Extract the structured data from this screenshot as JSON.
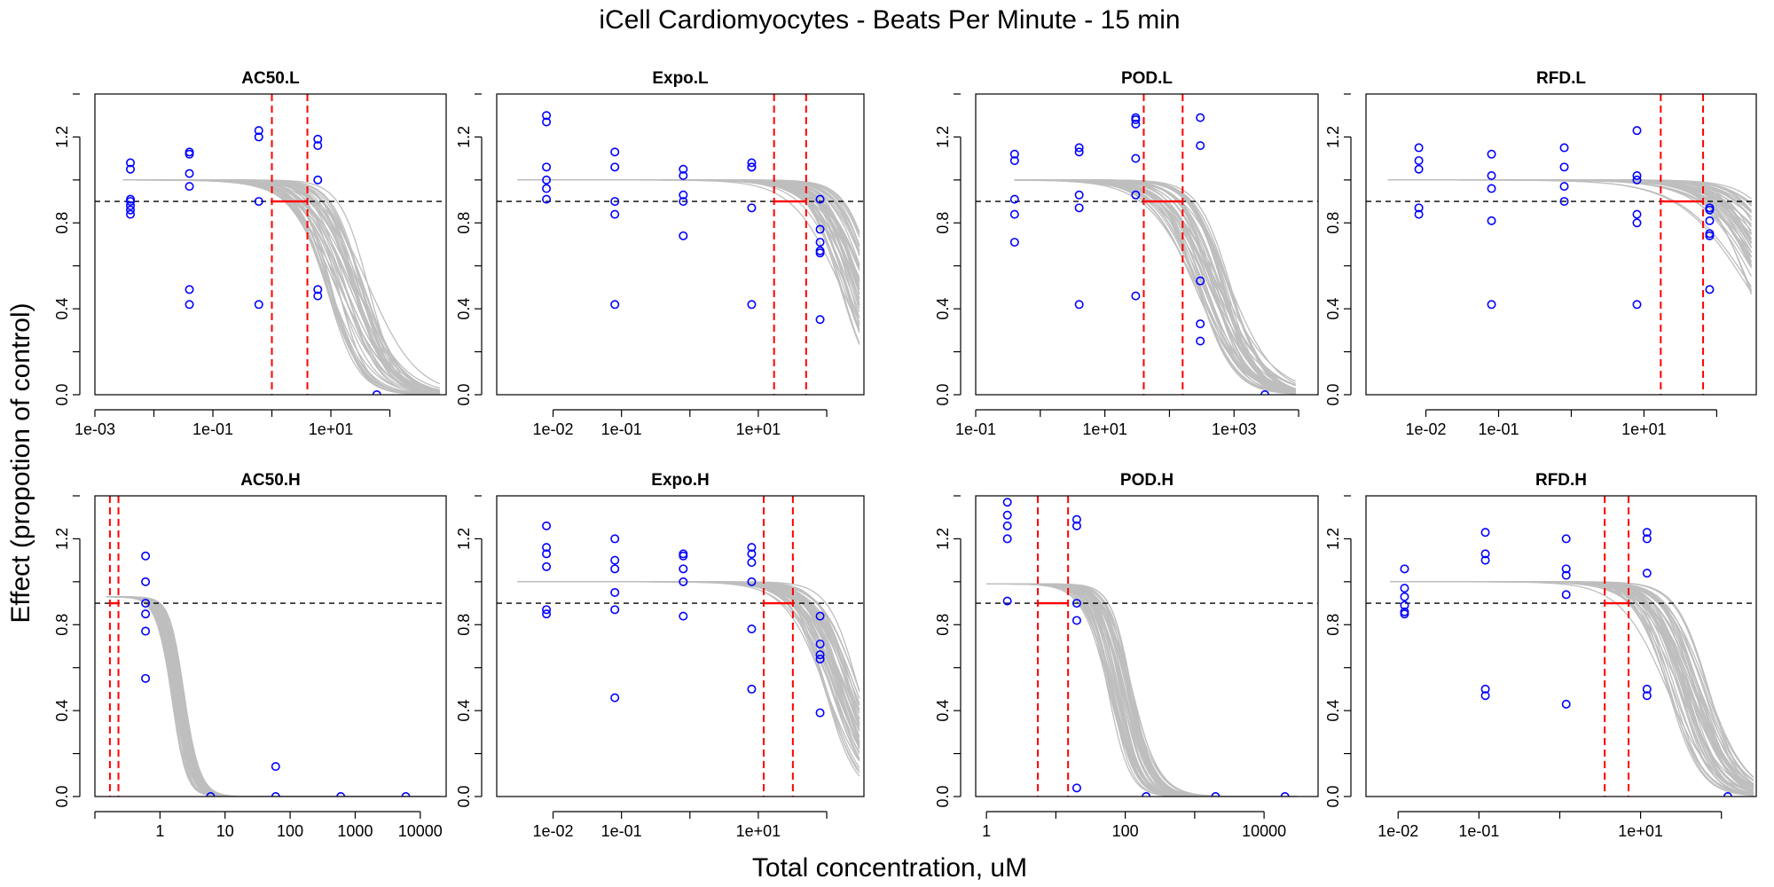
{
  "figure": {
    "title": "iCell Cardiomyocytes -  Beats Per Minute - 15 min",
    "xlabel": "Total concentration, uM",
    "ylabel": "Effect (propotion of control)"
  },
  "colors": {
    "curves": "#bebebe",
    "points": "#0000ff",
    "markers": "#ff0000",
    "threshold": "#000000"
  },
  "chart_data": [
    {
      "type": "scatter",
      "title": "AC50.L",
      "xscale": "log10",
      "xlim": [
        0.001,
        900
      ],
      "ylim": [
        0,
        1.4
      ],
      "threshold": 0.9,
      "xticks": [
        0.001,
        0.1,
        10
      ],
      "xtick_labels": [
        "1e-03",
        "1e-01",
        "1e+01"
      ],
      "yticks": [
        0,
        0.4,
        0.8,
        1.2
      ],
      "ytick_labels": [
        "0.0",
        "0.4",
        "0.8",
        "1.2"
      ],
      "vlines": [
        1.0,
        4.0
      ],
      "curve_band": {
        "top": 1.0,
        "ec50_low": 8,
        "ec50_high": 45,
        "slope_low": 1.0,
        "slope_high": 1.8,
        "x_from": 0.003,
        "x_to": 700
      },
      "points": [
        [
          0.004,
          1.08
        ],
        [
          0.004,
          1.05
        ],
        [
          0.004,
          0.91
        ],
        [
          0.004,
          0.9
        ],
        [
          0.004,
          0.88
        ],
        [
          0.004,
          0.86
        ],
        [
          0.004,
          0.84
        ],
        [
          0.04,
          1.13
        ],
        [
          0.04,
          1.12
        ],
        [
          0.04,
          1.03
        ],
        [
          0.04,
          0.97
        ],
        [
          0.04,
          0.49
        ],
        [
          0.04,
          0.42
        ],
        [
          0.6,
          1.23
        ],
        [
          0.6,
          1.2
        ],
        [
          0.6,
          0.9
        ],
        [
          0.6,
          0.42
        ],
        [
          6,
          1.19
        ],
        [
          6,
          1.16
        ],
        [
          6,
          1.0
        ],
        [
          6,
          0.49
        ],
        [
          6,
          0.46
        ],
        [
          60,
          0.0
        ]
      ]
    },
    {
      "type": "scatter",
      "title": "Expo.L",
      "xscale": "log10",
      "xlim": [
        0.0015,
        350
      ],
      "ylim": [
        0,
        1.4
      ],
      "threshold": 0.9,
      "xticks": [
        0.01,
        0.1,
        10
      ],
      "xtick_labels": [
        "1e-02",
        "1e-01",
        "1e+01"
      ],
      "yticks": [
        0,
        0.4,
        0.8,
        1.2
      ],
      "ytick_labels": [
        "0.0",
        "0.4",
        "0.8",
        "1.2"
      ],
      "vlines": [
        17,
        50
      ],
      "curve_band": {
        "top": 1.0,
        "ec50_low": 150,
        "ec50_high": 600,
        "slope_low": 1.2,
        "slope_high": 2.0,
        "x_from": 0.003,
        "x_to": 300
      },
      "points": [
        [
          0.008,
          1.3
        ],
        [
          0.008,
          1.27
        ],
        [
          0.008,
          1.06
        ],
        [
          0.008,
          1.0
        ],
        [
          0.008,
          0.96
        ],
        [
          0.008,
          0.91
        ],
        [
          0.08,
          1.13
        ],
        [
          0.08,
          1.06
        ],
        [
          0.08,
          0.9
        ],
        [
          0.08,
          0.84
        ],
        [
          0.08,
          0.42
        ],
        [
          0.8,
          1.05
        ],
        [
          0.8,
          1.02
        ],
        [
          0.8,
          0.93
        ],
        [
          0.8,
          0.9
        ],
        [
          0.8,
          0.74
        ],
        [
          8,
          1.08
        ],
        [
          8,
          1.06
        ],
        [
          8,
          1.06
        ],
        [
          8,
          0.87
        ],
        [
          8,
          0.42
        ],
        [
          80,
          0.91
        ],
        [
          80,
          0.77
        ],
        [
          80,
          0.71
        ],
        [
          80,
          0.67
        ],
        [
          80,
          0.66
        ],
        [
          80,
          0.35
        ]
      ]
    },
    {
      "type": "scatter",
      "title": "POD.L",
      "xscale": "log10",
      "xlim": [
        0.1,
        20000
      ],
      "ylim": [
        0,
        1.4
      ],
      "threshold": 0.9,
      "xticks": [
        0.1,
        10,
        1000
      ],
      "xtick_labels": [
        "1e-01",
        "1e+01",
        "1e+03"
      ],
      "yticks": [
        0,
        0.4,
        0.8,
        1.2
      ],
      "ytick_labels": [
        "0.0",
        "0.4",
        "0.8",
        "1.2"
      ],
      "vlines": [
        40,
        160
      ],
      "curve_band": {
        "top": 1.0,
        "ec50_low": 250,
        "ec50_high": 900,
        "slope_low": 1.0,
        "slope_high": 1.8,
        "x_from": 0.4,
        "x_to": 9000
      },
      "points": [
        [
          0.4,
          1.12
        ],
        [
          0.4,
          1.09
        ],
        [
          0.4,
          0.91
        ],
        [
          0.4,
          0.84
        ],
        [
          0.4,
          0.71
        ],
        [
          4,
          1.15
        ],
        [
          4,
          1.13
        ],
        [
          4,
          0.93
        ],
        [
          4,
          0.87
        ],
        [
          4,
          0.42
        ],
        [
          30,
          1.29
        ],
        [
          30,
          1.28
        ],
        [
          30,
          1.26
        ],
        [
          30,
          1.1
        ],
        [
          30,
          0.93
        ],
        [
          30,
          0.46
        ],
        [
          300,
          1.29
        ],
        [
          300,
          1.16
        ],
        [
          300,
          0.53
        ],
        [
          300,
          0.33
        ],
        [
          300,
          0.25
        ],
        [
          3000,
          0.0
        ]
      ]
    },
    {
      "type": "scatter",
      "title": "RFD.L",
      "xscale": "log10",
      "xlim": [
        0.0015,
        350
      ],
      "ylim": [
        0,
        1.4
      ],
      "threshold": 0.9,
      "xticks": [
        0.01,
        0.1,
        10
      ],
      "xtick_labels": [
        "1e-02",
        "1e-01",
        "1e+01"
      ],
      "yticks": [
        0,
        0.4,
        0.8,
        1.2
      ],
      "ytick_labels": [
        "0.0",
        "0.4",
        "0.8",
        "1.2"
      ],
      "vlines": [
        17,
        65
      ],
      "curve_band": {
        "top": 1.0,
        "ec50_low": 250,
        "ec50_high": 1500,
        "slope_low": 0.9,
        "slope_high": 1.6,
        "x_from": 0.003,
        "x_to": 300
      },
      "points": [
        [
          0.008,
          1.15
        ],
        [
          0.008,
          1.09
        ],
        [
          0.008,
          1.05
        ],
        [
          0.008,
          0.87
        ],
        [
          0.008,
          0.84
        ],
        [
          0.08,
          1.12
        ],
        [
          0.08,
          1.02
        ],
        [
          0.08,
          0.96
        ],
        [
          0.08,
          0.81
        ],
        [
          0.08,
          0.42
        ],
        [
          0.8,
          1.15
        ],
        [
          0.8,
          1.06
        ],
        [
          0.8,
          0.97
        ],
        [
          0.8,
          0.9
        ],
        [
          8,
          1.23
        ],
        [
          8,
          1.02
        ],
        [
          8,
          1.0
        ],
        [
          8,
          0.84
        ],
        [
          8,
          0.8
        ],
        [
          8,
          0.42
        ],
        [
          80,
          0.87
        ],
        [
          80,
          0.86
        ],
        [
          80,
          0.81
        ],
        [
          80,
          0.75
        ],
        [
          80,
          0.74
        ],
        [
          80,
          0.49
        ]
      ]
    },
    {
      "type": "scatter",
      "title": "AC50.H",
      "xscale": "log10",
      "xlim": [
        0.1,
        25000
      ],
      "ylim": [
        0,
        1.4
      ],
      "threshold": 0.9,
      "xticks": [
        1,
        10,
        100,
        1000,
        10000
      ],
      "xtick_labels": [
        "1",
        "10",
        "100",
        "1000",
        "10000"
      ],
      "yticks": [
        0,
        0.4,
        0.8,
        1.2
      ],
      "ytick_labels": [
        "0.0",
        "0.4",
        "0.8",
        "1.2"
      ],
      "vlines": [
        0.17,
        0.23
      ],
      "curve_band": {
        "top": 0.93,
        "ec50_low": 1.5,
        "ec50_high": 2.4,
        "slope_low": 3.2,
        "slope_high": 4.0,
        "x_from": 0.15,
        "x_to": 20000
      },
      "points": [
        [
          0.6,
          1.12
        ],
        [
          0.6,
          1.0
        ],
        [
          0.6,
          0.9
        ],
        [
          0.6,
          0.85
        ],
        [
          0.6,
          0.77
        ],
        [
          0.6,
          0.55
        ],
        [
          6,
          0.0
        ],
        [
          60,
          0.14
        ],
        [
          60,
          0.0
        ],
        [
          600,
          0.0
        ],
        [
          6000,
          0.0
        ]
      ]
    },
    {
      "type": "scatter",
      "title": "Expo.H",
      "xscale": "log10",
      "xlim": [
        0.0015,
        350
      ],
      "ylim": [
        0,
        1.4
      ],
      "threshold": 0.9,
      "xticks": [
        0.01,
        0.1,
        10
      ],
      "xtick_labels": [
        "1e-02",
        "1e-01",
        "1e+01"
      ],
      "yticks": [
        0,
        0.4,
        0.8,
        1.2
      ],
      "ytick_labels": [
        "0.0",
        "0.4",
        "0.8",
        "1.2"
      ],
      "vlines": [
        12,
        32
      ],
      "curve_band": {
        "top": 1.0,
        "ec50_low": 90,
        "ec50_high": 300,
        "slope_low": 1.3,
        "slope_high": 2.0,
        "x_from": 0.003,
        "x_to": 300
      },
      "points": [
        [
          0.008,
          1.26
        ],
        [
          0.008,
          1.16
        ],
        [
          0.008,
          1.13
        ],
        [
          0.008,
          1.07
        ],
        [
          0.008,
          0.87
        ],
        [
          0.008,
          0.85
        ],
        [
          0.08,
          1.2
        ],
        [
          0.08,
          1.1
        ],
        [
          0.08,
          1.06
        ],
        [
          0.08,
          0.95
        ],
        [
          0.08,
          0.87
        ],
        [
          0.08,
          0.46
        ],
        [
          0.8,
          1.13
        ],
        [
          0.8,
          1.12
        ],
        [
          0.8,
          1.06
        ],
        [
          0.8,
          1.0
        ],
        [
          0.8,
          0.84
        ],
        [
          8,
          1.16
        ],
        [
          8,
          1.13
        ],
        [
          8,
          1.09
        ],
        [
          8,
          1.0
        ],
        [
          8,
          0.78
        ],
        [
          8,
          0.5
        ],
        [
          80,
          0.84
        ],
        [
          80,
          0.71
        ],
        [
          80,
          0.66
        ],
        [
          80,
          0.64
        ],
        [
          80,
          0.39
        ]
      ]
    },
    {
      "type": "scatter",
      "title": "POD.H",
      "xscale": "log10",
      "xlim": [
        0.7,
        60000
      ],
      "ylim": [
        0,
        1.4
      ],
      "threshold": 0.9,
      "xticks": [
        1,
        100,
        10000
      ],
      "xtick_labels": [
        "1",
        "100",
        "10000"
      ],
      "yticks": [
        0,
        0.4,
        0.8,
        1.2
      ],
      "ytick_labels": [
        "0.0",
        "0.4",
        "0.8",
        "1.2"
      ],
      "vlines": [
        5.5,
        15
      ],
      "curve_band": {
        "top": 0.99,
        "ec50_low": 55,
        "ec50_high": 130,
        "slope_low": 2.0,
        "slope_high": 3.0,
        "x_from": 1,
        "x_to": 30000
      },
      "points": [
        [
          2,
          1.45
        ],
        [
          2,
          1.37
        ],
        [
          2,
          1.31
        ],
        [
          2,
          1.26
        ],
        [
          2,
          1.2
        ],
        [
          2,
          0.91
        ],
        [
          20,
          1.29
        ],
        [
          20,
          1.26
        ],
        [
          20,
          0.9
        ],
        [
          20,
          0.82
        ],
        [
          20,
          0.04
        ],
        [
          200,
          0.0
        ],
        [
          2000,
          0.0
        ],
        [
          20000,
          0.0
        ]
      ]
    },
    {
      "type": "scatter",
      "title": "RFD.H",
      "xscale": "log10",
      "xlim": [
        0.004,
        270
      ],
      "ylim": [
        0,
        1.4
      ],
      "threshold": 0.9,
      "xticks": [
        0.01,
        0.1,
        10
      ],
      "xtick_labels": [
        "1e-02",
        "1e-01",
        "1e+01"
      ],
      "yticks": [
        0,
        0.4,
        0.8,
        1.2
      ],
      "ytick_labels": [
        "0.0",
        "0.4",
        "0.8",
        "1.2"
      ],
      "vlines": [
        3.6,
        7.1
      ],
      "curve_band": {
        "top": 1.0,
        "ec50_low": 20,
        "ec50_high": 70,
        "slope_low": 1.5,
        "slope_high": 2.3,
        "x_from": 0.008,
        "x_to": 250
      },
      "points": [
        [
          0.012,
          1.06
        ],
        [
          0.012,
          0.97
        ],
        [
          0.012,
          0.93
        ],
        [
          0.012,
          0.89
        ],
        [
          0.012,
          0.86
        ],
        [
          0.012,
          0.85
        ],
        [
          0.12,
          1.23
        ],
        [
          0.12,
          1.13
        ],
        [
          0.12,
          1.1
        ],
        [
          0.12,
          0.5
        ],
        [
          0.12,
          0.47
        ],
        [
          1.2,
          1.2
        ],
        [
          1.2,
          1.06
        ],
        [
          1.2,
          1.03
        ],
        [
          1.2,
          0.94
        ],
        [
          1.2,
          0.43
        ],
        [
          12,
          1.23
        ],
        [
          12,
          1.2
        ],
        [
          12,
          1.04
        ],
        [
          12,
          0.5
        ],
        [
          12,
          0.47
        ],
        [
          120,
          0.0
        ]
      ]
    }
  ]
}
